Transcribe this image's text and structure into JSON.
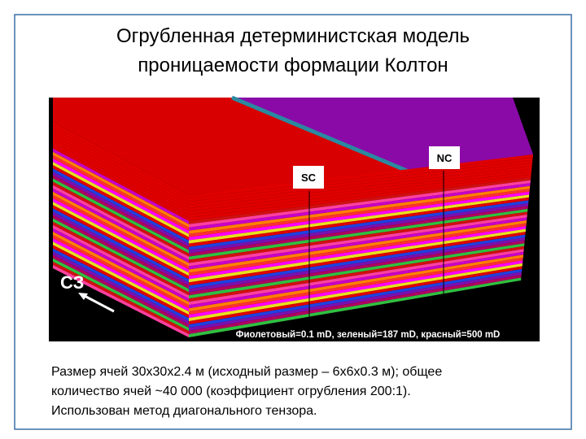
{
  "header": {
    "title_lines": [
      "Огрубленная детерминистская модель",
      "проницаемости формации Колтон"
    ]
  },
  "figure": {
    "labels": {
      "sc": "SC",
      "nc": "NC",
      "direction": "СЗ"
    },
    "caption": "Фиолетовый=0.1 mD, зеленый=187 mD, красный=500 mD"
  },
  "body": {
    "lines": [
      "Размер ячей 30x30x2.4 м (исходный размер – 6x6x0.3 м); общее",
      "количество ячей ~40 000 (коэффициент огрубления 200:1).",
      "Использован метод диагонального тензора."
    ]
  }
}
